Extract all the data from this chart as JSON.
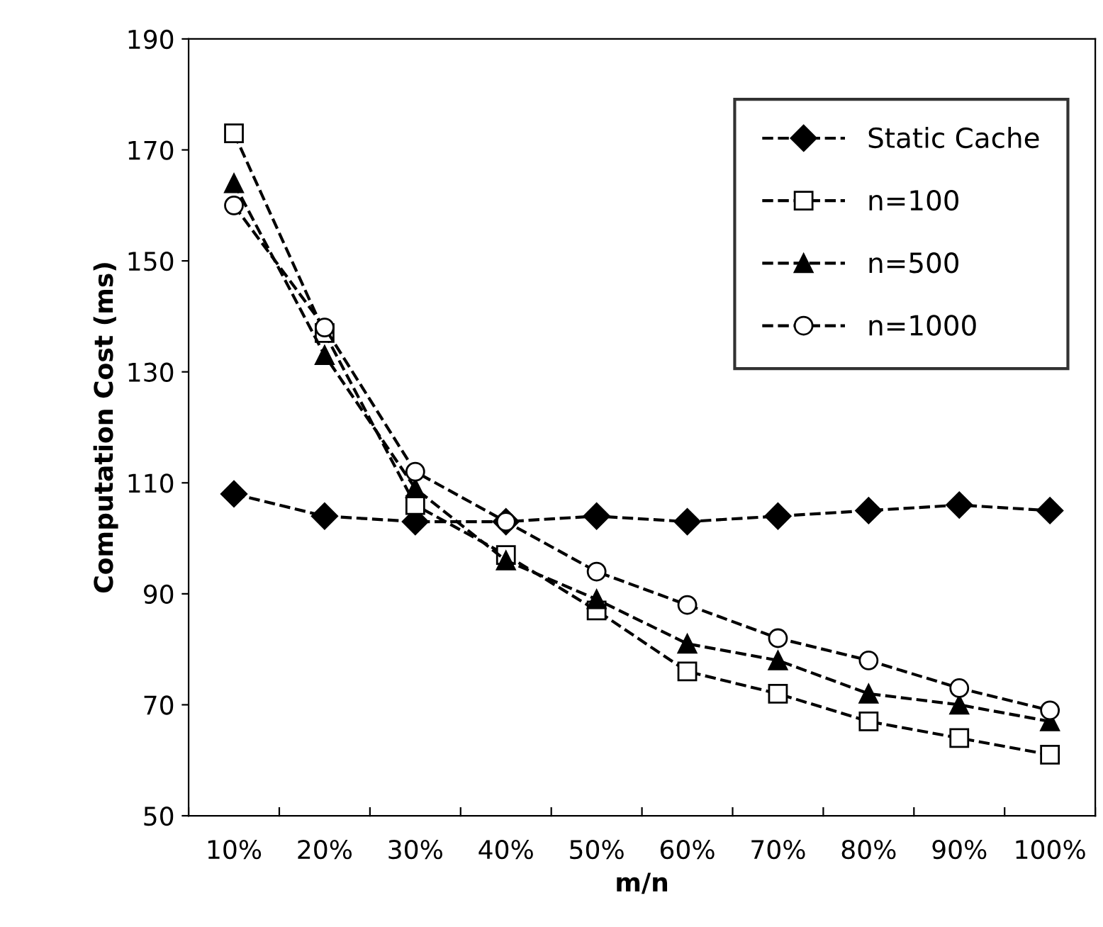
{
  "chart_data": {
    "type": "line",
    "xlabel": "m/n",
    "ylabel": "Computation Cost (ms)",
    "categories": [
      "10%",
      "20%",
      "30%",
      "40%",
      "50%",
      "60%",
      "70%",
      "80%",
      "90%",
      "100%"
    ],
    "series": [
      {
        "name": "Static Cache",
        "color": "#000000",
        "marker": "diamond",
        "values": [
          108,
          104,
          103,
          103,
          104,
          103,
          104,
          105,
          106,
          105
        ]
      },
      {
        "name": "n=100",
        "color": "#000000",
        "marker": "square",
        "values": [
          173,
          137,
          106,
          97,
          87,
          76,
          72,
          67,
          64,
          61
        ]
      },
      {
        "name": "n=500",
        "color": "#000000",
        "marker": "triangle",
        "values": [
          164,
          133,
          109,
          96,
          89,
          81,
          78,
          72,
          70,
          67
        ]
      },
      {
        "name": "n=1000",
        "color": "#000000",
        "marker": "circle",
        "values": [
          160,
          138,
          112,
          103,
          94,
          88,
          82,
          78,
          73,
          69
        ]
      }
    ],
    "ylim": [
      50,
      190
    ],
    "yticks": [
      50,
      70,
      90,
      110,
      130,
      150,
      170,
      190
    ],
    "grid": false,
    "legend": "top right",
    "line_style": "dashed"
  }
}
